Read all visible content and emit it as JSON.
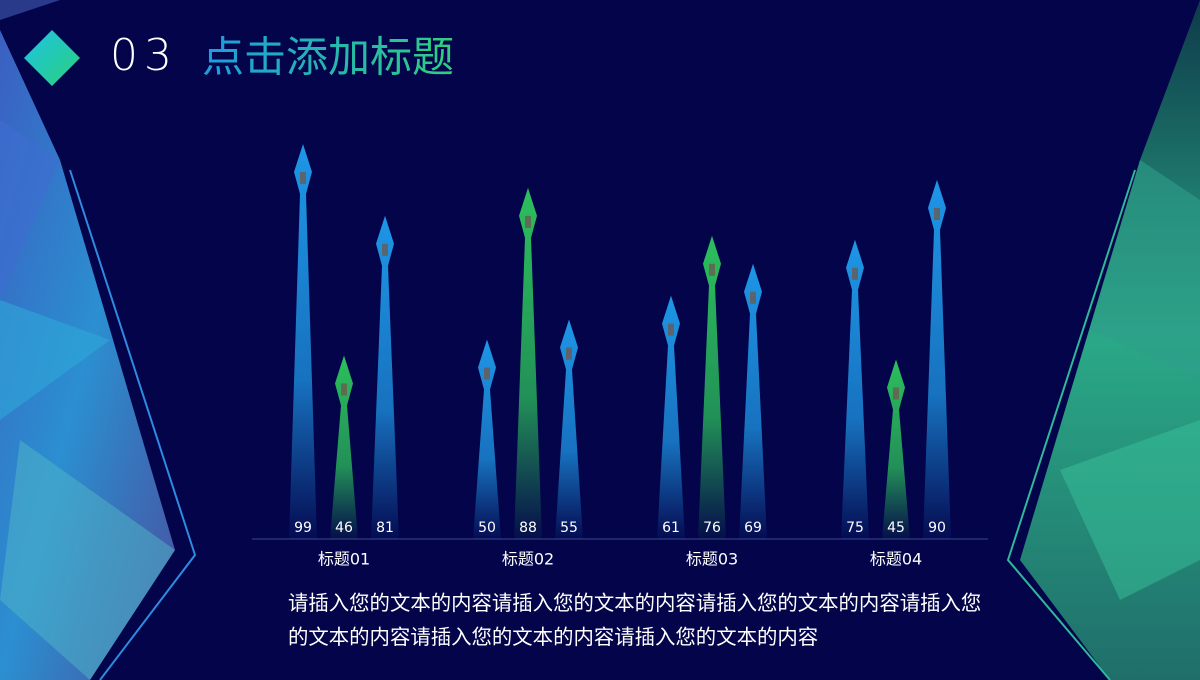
{
  "header": {
    "number": "03",
    "title": "点击添加标题"
  },
  "chart_data": {
    "type": "bar",
    "categories": [
      "标题01",
      "标题02",
      "标题03",
      "标题04"
    ],
    "series": [
      {
        "color": "#1e96e6",
        "values": [
          99,
          50,
          61,
          75
        ]
      },
      {
        "color": "#2cbf5c",
        "values": [
          46,
          88,
          76,
          45
        ]
      },
      {
        "color": "#1e96e6",
        "values": [
          81,
          55,
          69,
          90
        ]
      }
    ],
    "ylim": [
      0,
      100
    ]
  },
  "body": {
    "text": "请插入您的文本的内容请插入您的文本的内容请插入您的文本的内容请插入您的文本的内容请插入您的文本的内容请插入您的文本的内容"
  }
}
